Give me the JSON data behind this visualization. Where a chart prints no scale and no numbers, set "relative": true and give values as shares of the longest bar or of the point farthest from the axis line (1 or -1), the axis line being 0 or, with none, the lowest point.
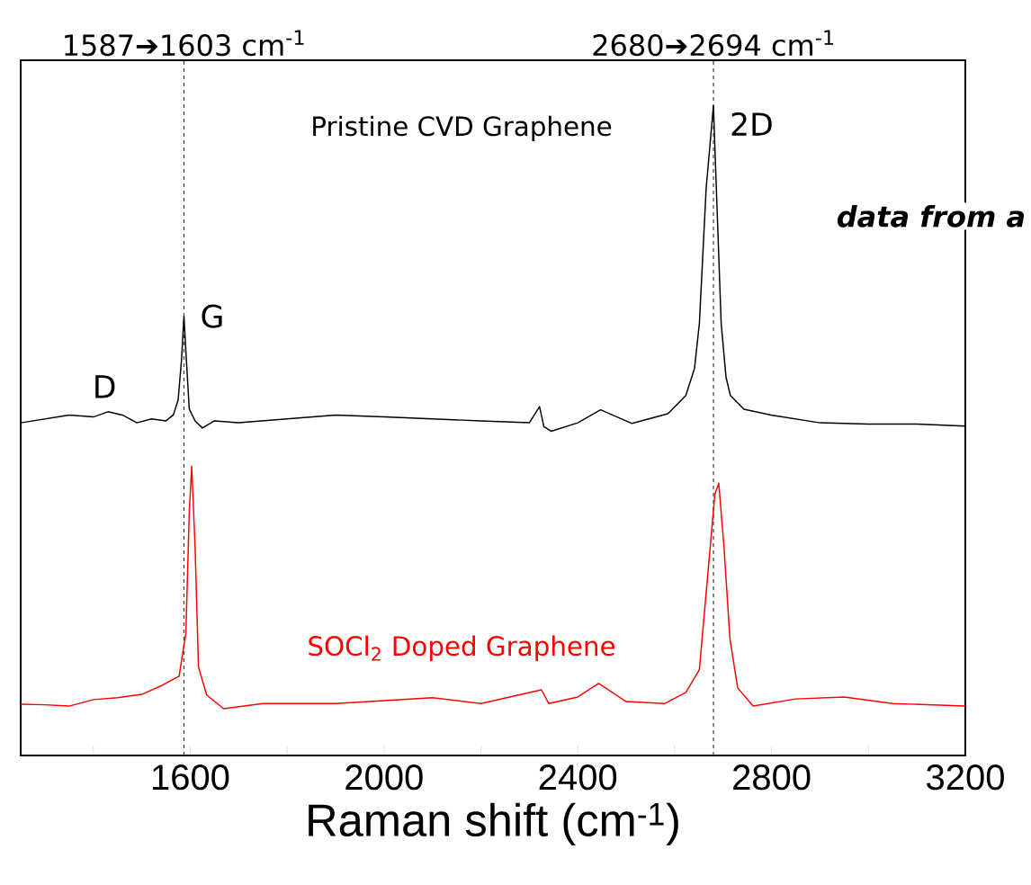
{
  "chart_data": {
    "type": "line",
    "relative": true,
    "xlabel": "Raman shift (cm$^{-1}$)",
    "xlim": [
      1250,
      3200
    ],
    "xticks": [
      {
        "value": 1400,
        "label": null
      },
      1600,
      {
        "value": 1800,
        "label": null
      },
      2000,
      {
        "value": 2200,
        "label": null
      },
      2400,
      {
        "value": 2600,
        "label": null
      },
      2800,
      {
        "value": 3000,
        "label": null
      },
      3200
    ],
    "line_style": "solid",
    "series": [
      {
        "name": "Pristine CVD Graphene",
        "color": "#000000",
        "x": [
          1250,
          1300,
          1350,
          1400,
          1430,
          1460,
          1490,
          1520,
          1550,
          1565,
          1575,
          1582,
          1587,
          1592,
          1598,
          1610,
          1625,
          1650,
          1700,
          1800,
          1900,
          2000,
          2100,
          2200,
          2300,
          2321,
          2330,
          2345,
          2400,
          2447,
          2512,
          2586,
          2623,
          2641,
          2651,
          2665,
          2680,
          2686,
          2696,
          2706,
          2715,
          2743,
          2799,
          2900,
          3000,
          3100,
          3200
        ],
        "values": [
          0.512,
          0.518,
          0.524,
          0.521,
          0.529,
          0.524,
          0.512,
          0.518,
          0.515,
          0.524,
          0.547,
          0.609,
          0.676,
          0.609,
          0.533,
          0.515,
          0.504,
          0.515,
          0.512,
          0.518,
          0.524,
          0.521,
          0.518,
          0.515,
          0.512,
          0.537,
          0.506,
          0.499,
          0.512,
          0.532,
          0.511,
          0.526,
          0.554,
          0.596,
          0.665,
          0.873,
          1.0,
          0.873,
          0.665,
          0.582,
          0.554,
          0.533,
          0.524,
          0.512,
          0.51,
          0.51,
          0.507
        ]
      },
      {
        "name": "SOCl$_{2}$ Doped Graphene",
        "color": "#ff0000",
        "x": [
          1250,
          1300,
          1350,
          1400,
          1450,
          1500,
          1542,
          1577,
          1591,
          1598,
          1603,
          1610,
          1617,
          1634,
          1669,
          1750,
          1900,
          2100,
          2200,
          2325,
          2340,
          2400,
          2443,
          2500,
          2580,
          2623,
          2651,
          2669,
          2683,
          2691,
          2702,
          2714,
          2730,
          2762,
          2850,
          2950,
          3050,
          3200
        ],
        "values": [
          0.079,
          0.078,
          0.076,
          0.086,
          0.089,
          0.094,
          0.108,
          0.122,
          0.188,
          0.375,
          0.445,
          0.321,
          0.136,
          0.093,
          0.072,
          0.08,
          0.08,
          0.089,
          0.08,
          0.101,
          0.08,
          0.09,
          0.111,
          0.083,
          0.08,
          0.097,
          0.132,
          0.284,
          0.402,
          0.419,
          0.319,
          0.18,
          0.104,
          0.076,
          0.087,
          0.09,
          0.08,
          0.076
        ]
      }
    ],
    "ref_lines": [
      {
        "axis": "x",
        "value": 1587,
        "label": "1587➔1603 cm$^{-1}$",
        "color": "#404040",
        "line_style": "dashed"
      },
      {
        "axis": "x",
        "value": 2680,
        "label": "2680➔2694 cm$^{-1}$",
        "color": "#404040",
        "line_style": "dashed"
      }
    ],
    "annotations": [
      {
        "text": "D",
        "x": 1423,
        "y": 0.529
      },
      {
        "text": "G",
        "x": 1587,
        "y": 0.676
      },
      {
        "text": "2D",
        "x": 2680,
        "y": 1.0
      },
      "*data from a*"
    ]
  }
}
